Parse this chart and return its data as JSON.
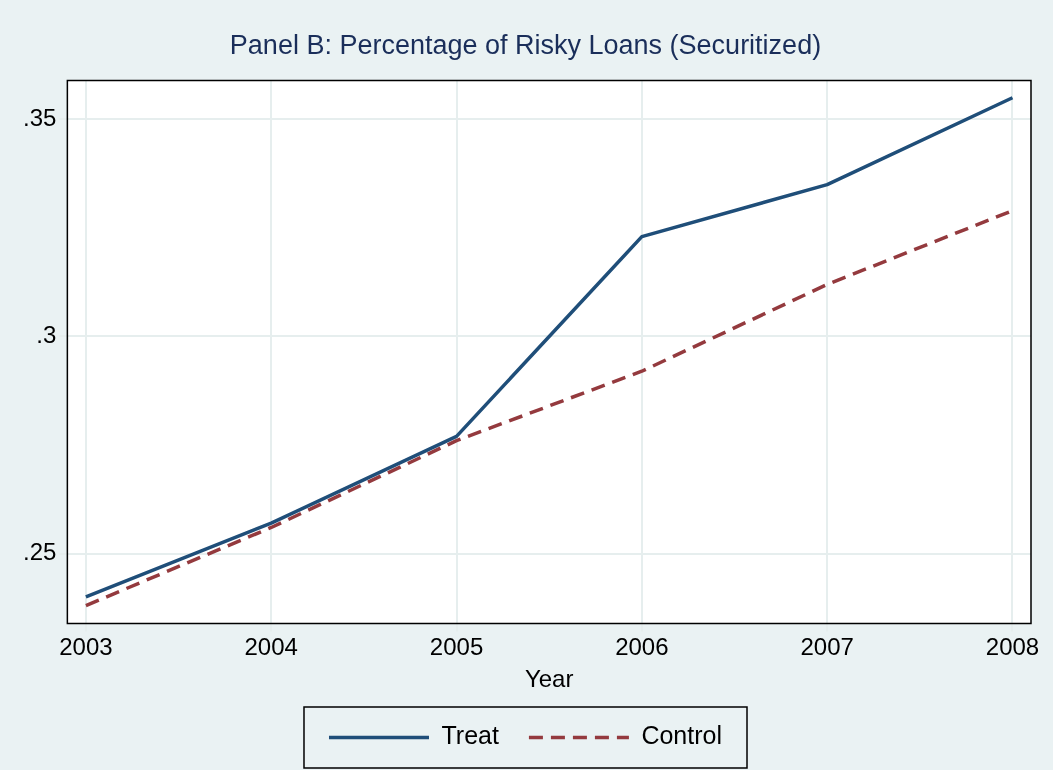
{
  "chart_data": {
    "type": "line",
    "title": "Panel B: Percentage of Risky Loans (Securitized)",
    "xlabel": "Year",
    "x": [
      2003,
      2004,
      2005,
      2006,
      2007,
      2008
    ],
    "series": [
      {
        "name": "Treat",
        "color": "#1f4e79",
        "line_style": "solid",
        "values": [
          0.24,
          0.257,
          0.277,
          0.323,
          0.335,
          0.355
        ]
      },
      {
        "name": "Control",
        "color": "#943a3e",
        "line_style": "dashed",
        "values": [
          0.238,
          0.256,
          0.276,
          0.292,
          0.312,
          0.329
        ]
      }
    ],
    "xlim": [
      2002.9,
      2008.1
    ],
    "xticks": [
      2003,
      2004,
      2005,
      2006,
      2007,
      2008
    ],
    "ylim": [
      0.2339,
      0.359
    ],
    "yticks": [
      {
        "value": 0.25,
        "label": ".25"
      },
      {
        "value": 0.3,
        "label": ".3"
      },
      {
        "value": 0.35,
        "label": ".35"
      }
    ],
    "grid": true,
    "legend": "bottom",
    "marker": "none"
  }
}
